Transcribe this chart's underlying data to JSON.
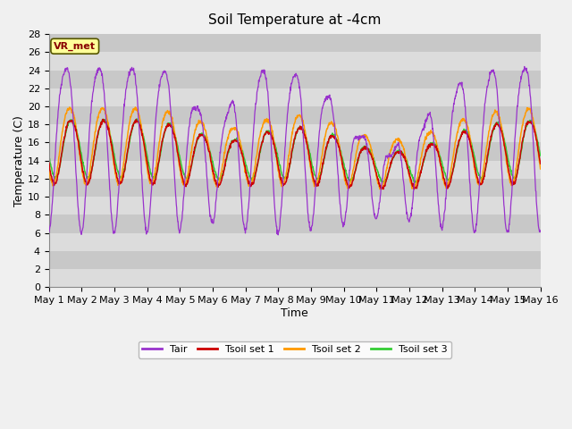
{
  "title": "Soil Temperature at -4cm",
  "xlabel": "Time",
  "ylabel": "Temperature (C)",
  "ylim": [
    0,
    28
  ],
  "yticks": [
    0,
    2,
    4,
    6,
    8,
    10,
    12,
    14,
    16,
    18,
    20,
    22,
    24,
    26,
    28
  ],
  "colors": {
    "Tair": "#9933CC",
    "Tsoil1": "#CC0000",
    "Tsoil2": "#FF9900",
    "Tsoil3": "#33CC33"
  },
  "legend_labels": [
    "Tair",
    "Tsoil set 1",
    "Tsoil set 2",
    "Tsoil set 3"
  ],
  "annotation_text": "VR_met",
  "annotation_color": "#880000",
  "annotation_bg": "#FFFF99",
  "bg_light": "#DCDCDC",
  "bg_dark": "#C8C8C8",
  "title_fontsize": 11,
  "label_fontsize": 9,
  "tick_fontsize": 8,
  "figsize": [
    6.4,
    4.8
  ],
  "dpi": 100,
  "x_start": 0,
  "x_end": 15,
  "xtick_positions": [
    0,
    1,
    2,
    3,
    4,
    5,
    6,
    7,
    8,
    9,
    10,
    11,
    12,
    13,
    14,
    15
  ],
  "xtick_labels": [
    "May 1",
    "May 2",
    "May 3",
    "May 4",
    "May 5",
    "May 6",
    "May 7",
    "May 8",
    "May 9",
    "May 10",
    "May 11",
    "May 12",
    "May 13",
    "May 14",
    "May 15",
    "May 16"
  ]
}
